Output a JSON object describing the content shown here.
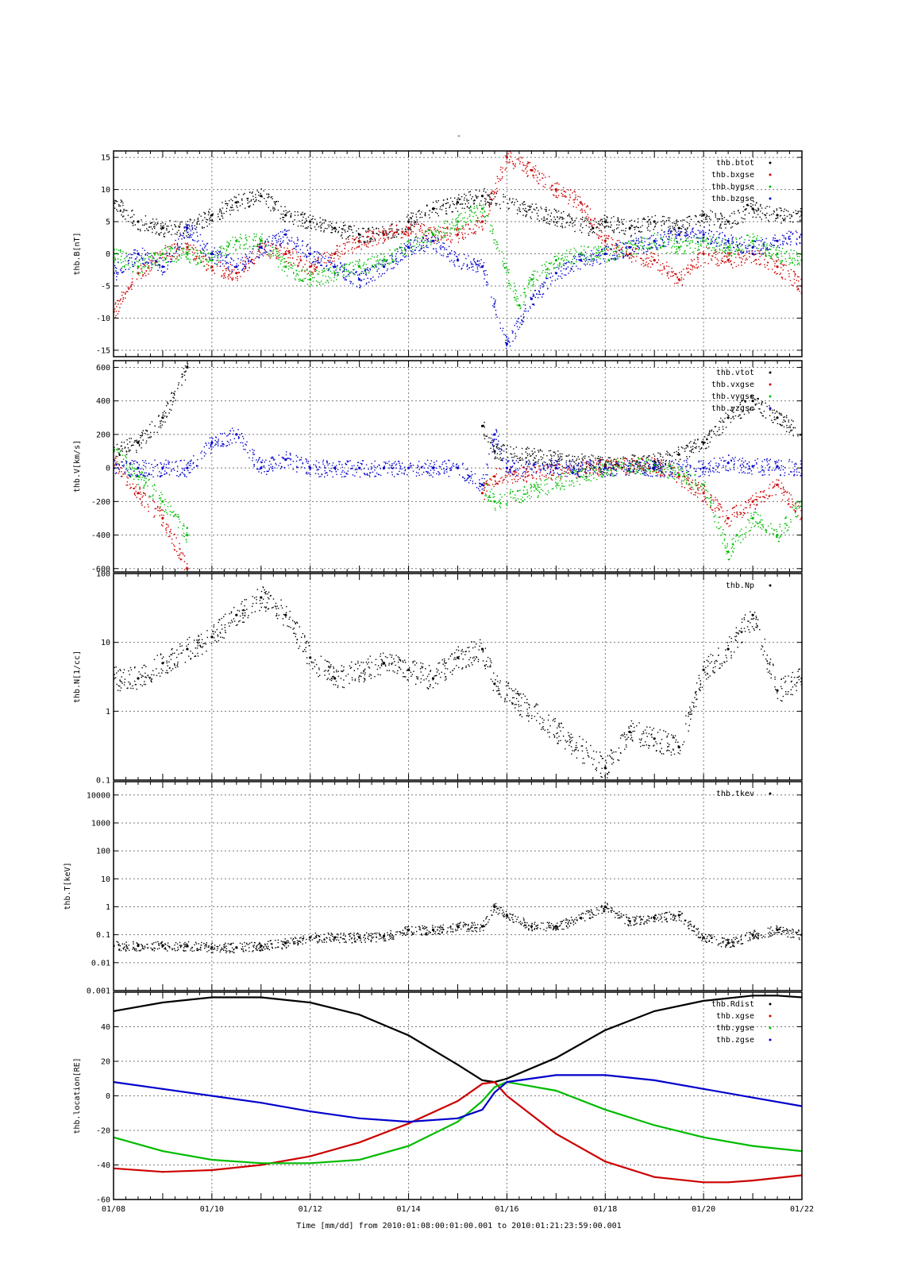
{
  "figure": {
    "title": "-",
    "xlabel": "Time [mm/dd]  from 2010:01:08:00:01:00.001  to  2010:01:21:23:59:00.001"
  },
  "chart_data": [
    {
      "type": "scatter",
      "ylabel": "thb.B[nT]",
      "ylim": [
        -16,
        16
      ],
      "yscale": "linear",
      "yticks": [
        -15,
        -10,
        -5,
        0,
        5,
        10,
        15
      ],
      "xlim": [
        "01/08",
        "01/22"
      ],
      "xticks": [
        "01/08",
        "01/10",
        "01/12",
        "01/14",
        "01/16",
        "01/18",
        "01/20",
        "01/22"
      ],
      "grid": true,
      "legend_position": "top-right",
      "series": [
        {
          "name": "thb.btot",
          "color": "#000000",
          "x": [
            "01/08",
            "01/08 12h",
            "01/09",
            "01/09 12h",
            "01/10",
            "01/10 12h",
            "01/11",
            "01/11 12h",
            "01/12",
            "01/12 12h",
            "01/13",
            "01/13 12h",
            "01/14",
            "01/14 12h",
            "01/15",
            "01/15 12h",
            "01/17 18h",
            "01/18",
            "01/18 12h",
            "01/19",
            "01/19 12h",
            "01/20",
            "01/20 12h",
            "01/21",
            "01/21 12h",
            "01/22"
          ],
          "y": [
            8,
            5,
            4,
            4,
            6,
            8,
            9,
            6,
            5,
            4,
            3,
            3,
            5,
            7,
            8,
            9,
            4,
            5,
            4,
            5,
            4,
            6,
            5,
            7,
            6,
            6
          ]
        },
        {
          "name": "thb.bxgse",
          "color": "#cc0000",
          "x": [
            "01/08",
            "01/08 12h",
            "01/09",
            "01/09 12h",
            "01/10",
            "01/10 12h",
            "01/11",
            "01/11 12h",
            "01/12",
            "01/12 12h",
            "01/13",
            "01/13 12h",
            "01/14",
            "01/14 12h",
            "01/15",
            "01/15 12h",
            "01/16",
            "01/16 12h",
            "01/17",
            "01/17 12h",
            "01/18",
            "01/18 12h",
            "01/19",
            "01/19 12h",
            "01/20",
            "01/20 12h",
            "01/21",
            "01/21 12h",
            "01/22"
          ],
          "y": [
            -9,
            -3,
            0,
            1,
            -2,
            -3,
            1,
            0,
            -2,
            0,
            2,
            3,
            4,
            3,
            3,
            5,
            15,
            13,
            10,
            8,
            2,
            0,
            -1,
            -4,
            0,
            -1,
            0,
            -2,
            -5
          ]
        },
        {
          "name": "thb.bygse",
          "color": "#00bb00",
          "x": [
            "01/08",
            "01/08 12h",
            "01/09",
            "01/09 12h",
            "01/10",
            "01/10 12h",
            "01/11",
            "01/11 12h",
            "01/12",
            "01/12 12h",
            "01/13",
            "01/13 12h",
            "01/14",
            "01/14 12h",
            "01/15",
            "01/15 12h",
            "01/16 06h",
            "01/16 12h",
            "01/17",
            "01/17 12h",
            "01/18",
            "01/18 12h",
            "01/19",
            "01/19 12h",
            "01/20",
            "01/20 12h",
            "01/21",
            "01/21 12h",
            "01/22"
          ],
          "y": [
            0,
            -2,
            0,
            0,
            -1,
            2,
            2,
            -2,
            -4,
            -3,
            -2,
            -1,
            1,
            3,
            5,
            7,
            -8,
            -4,
            -1,
            0,
            0,
            1,
            2,
            1,
            2,
            1,
            2,
            0,
            -1
          ]
        },
        {
          "name": "thb.bzgse",
          "color": "#0000cc",
          "x": [
            "01/08",
            "01/08 12h",
            "01/09",
            "01/09 12h",
            "01/10",
            "01/10 12h",
            "01/11",
            "01/11 12h",
            "01/12",
            "01/12 12h",
            "01/13",
            "01/13 12h",
            "01/14",
            "01/14 12h",
            "01/15",
            "01/15 12h",
            "01/16",
            "01/16 12h",
            "01/17",
            "01/17 12h",
            "01/18",
            "01/18 12h",
            "01/19",
            "01/19 12h",
            "01/20",
            "01/20 12h",
            "01/21",
            "01/21 12h",
            "01/22"
          ],
          "y": [
            -3,
            0,
            -2,
            4,
            0,
            -2,
            1,
            3,
            0,
            -2,
            -4,
            -2,
            1,
            2,
            -1,
            -2,
            -14,
            -7,
            -3,
            -1,
            0,
            1,
            2,
            3,
            3,
            2,
            1,
            2,
            3
          ]
        }
      ]
    },
    {
      "type": "scatter",
      "ylabel": "thb.V[km/s]",
      "ylim": [
        -620,
        640
      ],
      "yscale": "linear",
      "yticks": [
        -600,
        -400,
        -200,
        0,
        200,
        400,
        600
      ],
      "xlim": [
        "01/08",
        "01/22"
      ],
      "xticks": [
        "01/08",
        "01/10",
        "01/12",
        "01/14",
        "01/16",
        "01/18",
        "01/20",
        "01/22"
      ],
      "grid": true,
      "legend_position": "top-right",
      "series": [
        {
          "name": "thb.vtot",
          "color": "#000000",
          "x": [
            "01/08",
            "01/08 12h",
            "01/09",
            "01/09 12h",
            "01/15 12h",
            "01/15 18h",
            "01/18",
            "01/19",
            "01/19 12h",
            "01/20",
            "01/20 12h",
            "01/21",
            "01/21 12h",
            "01/22"
          ],
          "y": [
            100,
            150,
            300,
            600,
            250,
            100,
            20,
            40,
            80,
            150,
            300,
            400,
            300,
            200
          ]
        },
        {
          "name": "thb.vxgse",
          "color": "#cc0000",
          "x": [
            "01/08",
            "01/08 12h",
            "01/09",
            "01/09 12h",
            "01/15 12h",
            "01/15 18h",
            "01/18",
            "01/19",
            "01/19 12h",
            "01/20",
            "01/20 12h",
            "01/21",
            "01/21 12h",
            "01/22"
          ],
          "y": [
            50,
            -150,
            -300,
            -600,
            -150,
            -50,
            10,
            20,
            -50,
            -150,
            -300,
            -200,
            -100,
            -300
          ]
        },
        {
          "name": "thb.vygse",
          "color": "#00bb00",
          "x": [
            "01/08",
            "01/08 12h",
            "01/09",
            "01/09 12h",
            "01/15 12h",
            "01/15 18h",
            "01/18",
            "01/19",
            "01/19 12h",
            "01/20",
            "01/20 12h",
            "01/21",
            "01/21 12h",
            "01/22"
          ],
          "y": [
            100,
            -50,
            -200,
            -400,
            -100,
            -200,
            0,
            20,
            -40,
            -100,
            -500,
            -300,
            -400,
            -200
          ]
        },
        {
          "name": "thb.vzgse",
          "color": "#0000cc",
          "x": [
            "01/08",
            "01/08 12h",
            "01/09",
            "01/09 12h",
            "01/10",
            "01/10 12h",
            "01/11",
            "01/11 12h",
            "01/12",
            "01/12 12h",
            "01/13",
            "01/13 12h",
            "01/14",
            "01/14 12h",
            "01/15",
            "01/15 12h",
            "01/15 18h",
            "01/16",
            "01/17",
            "01/18",
            "01/19",
            "01/20",
            "01/20 12h",
            "01/21",
            "01/21 12h",
            "01/22"
          ],
          "y": [
            0,
            0,
            0,
            0,
            150,
            200,
            0,
            50,
            0,
            0,
            0,
            0,
            0,
            0,
            0,
            -100,
            200,
            0,
            0,
            0,
            0,
            0,
            30,
            10,
            10,
            0
          ]
        }
      ]
    },
    {
      "type": "scatter",
      "ylabel": "thb.N[1/cc]",
      "ylim": [
        0.1,
        100
      ],
      "yscale": "log",
      "yticks": [
        0.1,
        1,
        10,
        100
      ],
      "xlim": [
        "01/08",
        "01/22"
      ],
      "xticks": [
        "01/08",
        "01/10",
        "01/12",
        "01/14",
        "01/16",
        "01/18",
        "01/20",
        "01/22"
      ],
      "grid": true,
      "legend_position": "top-right",
      "series": [
        {
          "name": "thb.Np",
          "color": "#000000",
          "x": [
            "01/08",
            "01/08 12h",
            "01/09",
            "01/09 12h",
            "01/10",
            "01/10 12h",
            "01/11",
            "01/11 12h",
            "01/12",
            "01/12 12h",
            "01/13 12h",
            "01/14",
            "01/14 12h",
            "01/15",
            "01/15 12h",
            "01/15 18h",
            "01/18",
            "01/18 12h",
            "01/19",
            "01/19 12h",
            "01/20",
            "01/20 12h",
            "01/21",
            "01/21 12h",
            "01/22"
          ],
          "y": [
            3,
            3,
            5,
            8,
            12,
            25,
            45,
            25,
            6,
            3,
            5,
            4,
            3,
            6,
            8,
            2.5,
            0.15,
            0.5,
            0.4,
            0.3,
            4,
            8,
            25,
            2,
            3
          ]
        }
      ]
    },
    {
      "type": "scatter",
      "ylabel": "thb.T[keV]",
      "ylim": [
        0.001,
        30000
      ],
      "yscale": "log",
      "yticks": [
        0.001,
        0.01,
        0.1,
        1,
        10,
        100,
        1000,
        10000
      ],
      "xlim": [
        "01/08",
        "01/22"
      ],
      "xticks": [
        "01/08",
        "01/10",
        "01/12",
        "01/14",
        "01/16",
        "01/18",
        "01/20",
        "01/22"
      ],
      "grid": true,
      "legend_position": "top-right",
      "series": [
        {
          "name": "thb.tkev",
          "color": "#000000",
          "x": [
            "01/08",
            "01/08 12h",
            "01/09",
            "01/09 12h",
            "01/10",
            "01/10 12h",
            "01/11",
            "01/11 12h",
            "01/12",
            "01/12 12h",
            "01/13",
            "01/13 12h",
            "01/14",
            "01/14 12h",
            "01/15",
            "01/15 12h",
            "01/15 18h",
            "01/16",
            "01/16 12h",
            "01/17",
            "01/17 12h",
            "01/18",
            "01/18 12h",
            "01/19",
            "01/19 12h",
            "01/20",
            "01/20 12h",
            "01/21",
            "01/21 12h",
            "01/22"
          ],
          "y": [
            0.04,
            0.04,
            0.04,
            0.04,
            0.035,
            0.035,
            0.04,
            0.05,
            0.08,
            0.08,
            0.08,
            0.09,
            0.15,
            0.15,
            0.2,
            0.2,
            1,
            0.5,
            0.2,
            0.2,
            0.4,
            1,
            0.3,
            0.4,
            0.5,
            0.08,
            0.05,
            0.1,
            0.15,
            0.1
          ]
        }
      ]
    },
    {
      "type": "line",
      "ylabel": "thb.location[RE]",
      "ylim": [
        -60,
        60
      ],
      "yscale": "linear",
      "yticks": [
        -60,
        -40,
        -20,
        0,
        20,
        40
      ],
      "xlim": [
        "01/08",
        "01/22"
      ],
      "xticks": [
        "01/08",
        "01/10",
        "01/12",
        "01/14",
        "01/16",
        "01/18",
        "01/20",
        "01/22"
      ],
      "grid": true,
      "legend_position": "top-right",
      "series": [
        {
          "name": "thb.Rdist",
          "color": "#000000",
          "x": [
            "01/08",
            "01/09",
            "01/10",
            "01/11",
            "01/12",
            "01/13",
            "01/14",
            "01/15",
            "01/15 12h",
            "01/15 18h",
            "01/16",
            "01/17",
            "01/18",
            "01/19",
            "01/20",
            "01/21",
            "01/21 12h",
            "01/22"
          ],
          "y": [
            49,
            54,
            57,
            57,
            54,
            47,
            35,
            18,
            9,
            8,
            10,
            22,
            38,
            49,
            55,
            58,
            58,
            57
          ]
        },
        {
          "name": "thb.xgse",
          "color": "#cc0000",
          "x": [
            "01/08",
            "01/09",
            "01/10",
            "01/11",
            "01/12",
            "01/13",
            "01/14",
            "01/15",
            "01/15 12h",
            "01/15 18h",
            "01/16",
            "01/17",
            "01/18",
            "01/19",
            "01/20",
            "01/20 12h",
            "01/21",
            "01/22"
          ],
          "y": [
            -42,
            -44,
            -43,
            -40,
            -35,
            -27,
            -16,
            -3,
            7,
            8,
            0,
            -22,
            -38,
            -47,
            -50,
            -50,
            -49,
            -46
          ]
        },
        {
          "name": "thb.ygse",
          "color": "#00bb00",
          "x": [
            "01/08",
            "01/09",
            "01/10",
            "01/11",
            "01/12",
            "01/13",
            "01/14",
            "01/15",
            "01/15 12h",
            "01/15 18h",
            "01/16",
            "01/17",
            "01/18",
            "01/19",
            "01/20",
            "01/21",
            "01/22"
          ],
          "y": [
            -24,
            -32,
            -37,
            -39,
            -39,
            -37,
            -29,
            -15,
            -3,
            5,
            8,
            3,
            -8,
            -17,
            -24,
            -29,
            -32
          ]
        },
        {
          "name": "thb.zgse",
          "color": "#0000cc",
          "x": [
            "01/08",
            "01/09",
            "01/10",
            "01/11",
            "01/12",
            "01/13",
            "01/14",
            "01/15",
            "01/15 12h",
            "01/15 18h",
            "01/16",
            "01/17",
            "01/18",
            "01/19",
            "01/20",
            "01/21",
            "01/22"
          ],
          "y": [
            8,
            4,
            0,
            -4,
            -9,
            -13,
            -15,
            -13,
            -8,
            2,
            8,
            12,
            12,
            9,
            4,
            -1,
            -6
          ]
        }
      ]
    }
  ]
}
